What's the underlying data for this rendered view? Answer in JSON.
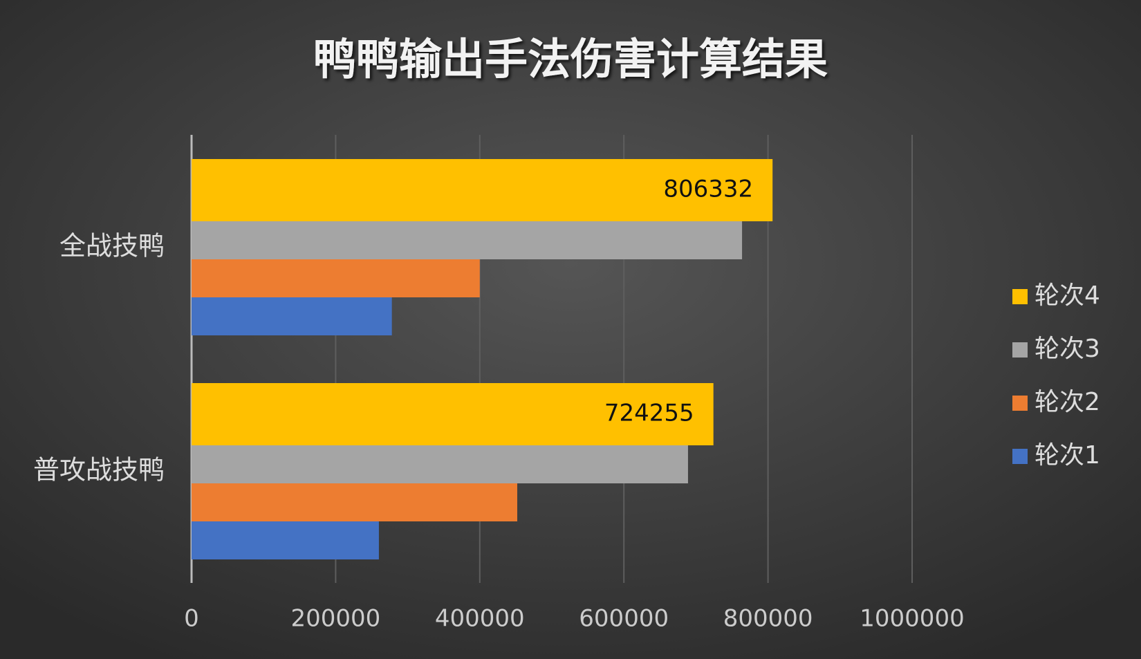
{
  "chart_data": {
    "type": "hbar",
    "title": "鸭鸭输出手法伤害计算结果",
    "categories": [
      "全战技鸭",
      "普攻战技鸭"
    ],
    "series": [
      {
        "name": "轮次1",
        "color": "#4472c4",
        "values": [
          278000,
          260000
        ]
      },
      {
        "name": "轮次2",
        "color": "#ed7d31",
        "values": [
          400000,
          452000
        ]
      },
      {
        "name": "轮次3",
        "color": "#a5a5a5",
        "values": [
          764000,
          689000
        ]
      },
      {
        "name": "轮次4",
        "color": "#ffc000",
        "values": [
          806332,
          724255
        ],
        "data_labels": true
      }
    ],
    "xlim": [
      0,
      1000000
    ],
    "xticks": [
      0,
      200000,
      400000,
      600000,
      800000,
      1000000
    ],
    "grid": true,
    "legend": "right"
  }
}
